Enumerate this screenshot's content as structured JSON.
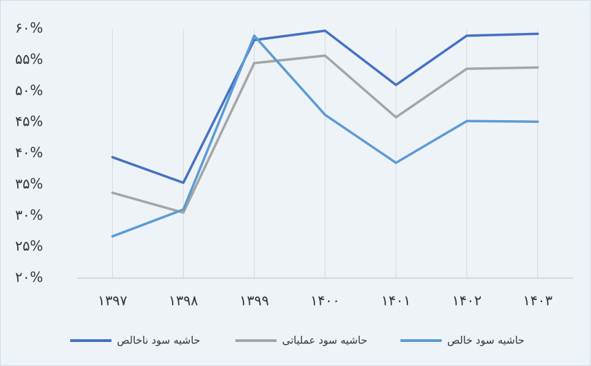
{
  "chart_data": {
    "type": "line",
    "categories": [
      "۱۳۹۷",
      "۱۳۹۸",
      "۱۳۹۹",
      "۱۴۰۰",
      "۱۴۰۱",
      "۱۴۰۲",
      "۱۴۰۳"
    ],
    "series": [
      {
        "name": "حاشیه سود ناخالص",
        "color": "#4472c4",
        "values": [
          39.4,
          35.3,
          58.2,
          59.7,
          51,
          58.9,
          59.2
        ]
      },
      {
        "name": "حاشیه سود عملیاتی",
        "color": "#a5a5a5",
        "values": [
          33.7,
          30.5,
          54.5,
          55.7,
          45.8,
          53.6,
          53.8
        ]
      },
      {
        "name": "حاشیه سود خالص",
        "color": "#5b9bd5",
        "values": [
          26.7,
          31,
          58.9,
          46.2,
          38.5,
          45.2,
          45.1
        ]
      }
    ],
    "ylim": [
      20,
      60
    ],
    "yticks": [
      {
        "value": 20,
        "label": "۲۰%"
      },
      {
        "value": 25,
        "label": "۲۵%"
      },
      {
        "value": 30,
        "label": "۳۰%"
      },
      {
        "value": 35,
        "label": "۳۵%"
      },
      {
        "value": 40,
        "label": "۴۰%"
      },
      {
        "value": 45,
        "label": "۴۵%"
      },
      {
        "value": 50,
        "label": "۵۰%"
      },
      {
        "value": 55,
        "label": "۵۵%"
      },
      {
        "value": 60,
        "label": "۶۰%"
      }
    ],
    "grid": true,
    "legend": "bottom"
  }
}
